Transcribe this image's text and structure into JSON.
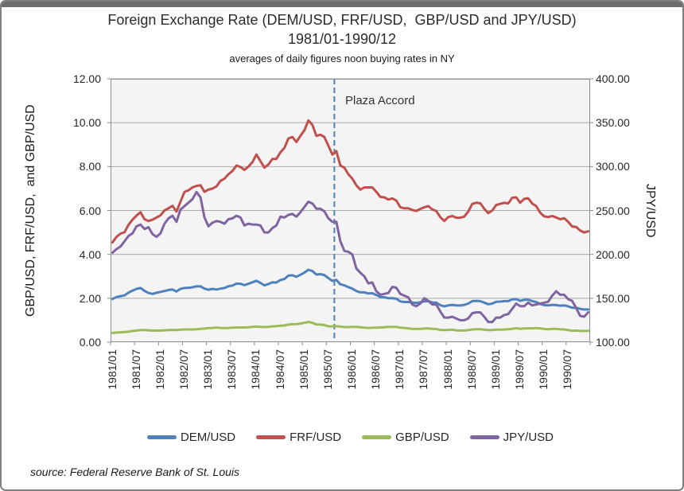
{
  "chart_data": {
    "type": "line",
    "title": "Foreign Exchange Rate (DEM/USD, FRF/USD,  GBP/USD and JPY/USD)",
    "subtitle": "1981/01-1990/12",
    "subtitle2": "averages of daily figures noon buying rates in NY",
    "source": "source: Federal Reserve Bank of St. Louis",
    "grid": true,
    "legend_position": "bottom",
    "annotation": {
      "text": "Plaza Accord",
      "x": "1985/09",
      "style": "dashed-vertical",
      "color": "#4F81BD"
    },
    "left_axis": {
      "label": "GBP/USD, FRF/USD,  and GBP/USD",
      "min": 0,
      "max": 12,
      "step": 2
    },
    "right_axis": {
      "label": "JPY/USD",
      "min": 100,
      "max": 400,
      "step": 50
    },
    "x_tick_step": 6,
    "x": [
      "1981/01",
      "1981/02",
      "1981/03",
      "1981/04",
      "1981/05",
      "1981/06",
      "1981/07",
      "1981/08",
      "1981/09",
      "1981/10",
      "1981/11",
      "1981/12",
      "1982/01",
      "1982/02",
      "1982/03",
      "1982/04",
      "1982/05",
      "1982/06",
      "1982/07",
      "1982/08",
      "1982/09",
      "1982/10",
      "1982/11",
      "1982/12",
      "1983/01",
      "1983/02",
      "1983/03",
      "1983/04",
      "1983/05",
      "1983/06",
      "1983/07",
      "1983/08",
      "1983/09",
      "1983/10",
      "1983/11",
      "1983/12",
      "1984/01",
      "1984/02",
      "1984/03",
      "1984/04",
      "1984/05",
      "1984/06",
      "1984/07",
      "1984/08",
      "1984/09",
      "1984/10",
      "1984/11",
      "1984/12",
      "1985/01",
      "1985/02",
      "1985/03",
      "1985/04",
      "1985/05",
      "1985/06",
      "1985/07",
      "1985/08",
      "1985/09",
      "1985/10",
      "1985/11",
      "1985/12",
      "1986/01",
      "1986/02",
      "1986/03",
      "1986/04",
      "1986/05",
      "1986/06",
      "1986/07",
      "1986/08",
      "1986/09",
      "1986/10",
      "1986/11",
      "1986/12",
      "1987/01",
      "1987/02",
      "1987/03",
      "1987/04",
      "1987/05",
      "1987/06",
      "1987/07",
      "1987/08",
      "1987/09",
      "1987/10",
      "1987/11",
      "1987/12",
      "1988/01",
      "1988/02",
      "1988/03",
      "1988/04",
      "1988/05",
      "1988/06",
      "1988/07",
      "1988/08",
      "1988/09",
      "1988/10",
      "1988/11",
      "1988/12",
      "1989/01",
      "1989/02",
      "1989/03",
      "1989/04",
      "1989/05",
      "1989/06",
      "1989/07",
      "1989/08",
      "1989/09",
      "1989/10",
      "1989/11",
      "1989/12",
      "1990/01",
      "1990/02",
      "1990/03",
      "1990/04",
      "1990/05",
      "1990/06",
      "1990/07",
      "1990/08",
      "1990/09",
      "1990/10",
      "1990/11",
      "1990/12"
    ],
    "series": [
      {
        "name": "DEM/USD",
        "axis": "left",
        "color": "#4F81BD",
        "values": [
          1.97,
          2.06,
          2.1,
          2.13,
          2.26,
          2.35,
          2.43,
          2.47,
          2.34,
          2.24,
          2.2,
          2.25,
          2.29,
          2.33,
          2.38,
          2.4,
          2.31,
          2.43,
          2.47,
          2.48,
          2.5,
          2.54,
          2.55,
          2.44,
          2.39,
          2.43,
          2.4,
          2.44,
          2.47,
          2.55,
          2.58,
          2.67,
          2.66,
          2.6,
          2.66,
          2.73,
          2.8,
          2.7,
          2.59,
          2.65,
          2.73,
          2.72,
          2.83,
          2.88,
          3.03,
          3.05,
          2.98,
          3.07,
          3.17,
          3.3,
          3.24,
          3.08,
          3.1,
          3.06,
          2.92,
          2.79,
          2.84,
          2.64,
          2.59,
          2.51,
          2.44,
          2.33,
          2.27,
          2.27,
          2.22,
          2.23,
          2.15,
          2.06,
          2.05,
          2.0,
          2.0,
          1.98,
          1.86,
          1.83,
          1.83,
          1.81,
          1.79,
          1.82,
          1.86,
          1.87,
          1.81,
          1.8,
          1.69,
          1.63,
          1.68,
          1.7,
          1.67,
          1.67,
          1.7,
          1.76,
          1.87,
          1.88,
          1.87,
          1.8,
          1.73,
          1.76,
          1.84,
          1.85,
          1.87,
          1.87,
          1.95,
          1.96,
          1.88,
          1.93,
          1.94,
          1.87,
          1.83,
          1.74,
          1.69,
          1.68,
          1.7,
          1.69,
          1.66,
          1.68,
          1.63,
          1.57,
          1.57,
          1.52,
          1.49,
          1.49
        ]
      },
      {
        "name": "FRF/USD",
        "axis": "left",
        "color": "#C0504D",
        "values": [
          4.55,
          4.8,
          4.95,
          5.01,
          5.35,
          5.58,
          5.77,
          5.92,
          5.6,
          5.52,
          5.58,
          5.68,
          5.78,
          6.0,
          6.1,
          6.21,
          5.95,
          6.4,
          6.85,
          6.92,
          7.05,
          7.12,
          7.15,
          6.85,
          6.95,
          7.0,
          7.1,
          7.35,
          7.45,
          7.65,
          7.8,
          8.05,
          7.98,
          7.85,
          8.0,
          8.2,
          8.55,
          8.25,
          7.95,
          8.1,
          8.35,
          8.35,
          8.65,
          8.85,
          9.28,
          9.35,
          9.12,
          9.4,
          9.65,
          10.1,
          9.9,
          9.4,
          9.45,
          9.35,
          8.95,
          8.55,
          8.7,
          8.05,
          7.95,
          7.65,
          7.45,
          7.15,
          6.95,
          7.05,
          7.05,
          7.05,
          6.85,
          6.62,
          6.6,
          6.5,
          6.55,
          6.45,
          6.15,
          6.1,
          6.1,
          6.02,
          5.98,
          6.07,
          6.15,
          6.2,
          6.05,
          5.98,
          5.7,
          5.52,
          5.7,
          5.75,
          5.67,
          5.67,
          5.72,
          5.95,
          6.3,
          6.35,
          6.33,
          6.08,
          5.88,
          6.0,
          6.25,
          6.3,
          6.35,
          6.32,
          6.58,
          6.6,
          6.35,
          6.53,
          6.56,
          6.32,
          6.2,
          5.9,
          5.73,
          5.7,
          5.75,
          5.68,
          5.6,
          5.65,
          5.48,
          5.27,
          5.25,
          5.09,
          5.0,
          5.05
        ]
      },
      {
        "name": "GBP/USD",
        "axis": "left",
        "color": "#9BBB59",
        "values": [
          0.42,
          0.44,
          0.45,
          0.46,
          0.48,
          0.51,
          0.53,
          0.55,
          0.55,
          0.54,
          0.53,
          0.53,
          0.53,
          0.54,
          0.55,
          0.56,
          0.55,
          0.57,
          0.58,
          0.58,
          0.58,
          0.59,
          0.61,
          0.62,
          0.64,
          0.65,
          0.67,
          0.65,
          0.64,
          0.65,
          0.66,
          0.67,
          0.67,
          0.67,
          0.68,
          0.7,
          0.71,
          0.7,
          0.69,
          0.7,
          0.72,
          0.73,
          0.75,
          0.76,
          0.8,
          0.82,
          0.82,
          0.85,
          0.88,
          0.92,
          0.88,
          0.81,
          0.8,
          0.78,
          0.72,
          0.72,
          0.73,
          0.71,
          0.69,
          0.69,
          0.7,
          0.7,
          0.68,
          0.66,
          0.65,
          0.66,
          0.66,
          0.67,
          0.68,
          0.7,
          0.7,
          0.7,
          0.66,
          0.65,
          0.63,
          0.61,
          0.6,
          0.61,
          0.62,
          0.63,
          0.61,
          0.6,
          0.56,
          0.55,
          0.56,
          0.57,
          0.54,
          0.53,
          0.53,
          0.55,
          0.58,
          0.59,
          0.59,
          0.57,
          0.55,
          0.55,
          0.57,
          0.57,
          0.58,
          0.59,
          0.61,
          0.64,
          0.61,
          0.63,
          0.63,
          0.63,
          0.64,
          0.63,
          0.6,
          0.59,
          0.61,
          0.61,
          0.59,
          0.58,
          0.55,
          0.52,
          0.53,
          0.51,
          0.51,
          0.52
        ]
      },
      {
        "name": "JPY/USD",
        "axis": "right",
        "color": "#8064A2",
        "values": [
          202,
          206,
          209,
          215,
          221,
          224,
          232,
          234,
          229,
          231,
          223,
          220,
          224,
          235,
          241,
          244,
          237,
          251,
          255,
          259,
          263,
          271,
          265,
          242,
          232,
          236,
          238,
          237,
          235,
          240,
          241,
          244,
          242,
          233,
          235,
          234,
          234,
          233,
          225,
          225,
          230,
          233,
          243,
          242,
          245,
          246,
          243,
          248,
          254,
          260,
          258,
          252,
          252,
          249,
          241,
          237,
          237,
          215,
          204,
          203,
          200,
          184,
          179,
          175,
          167,
          168,
          158,
          154,
          155,
          156,
          163,
          162,
          155,
          153,
          151,
          143,
          141,
          144,
          150,
          147,
          143,
          143,
          135,
          128,
          128,
          129,
          127,
          125,
          125,
          127,
          133,
          134,
          134,
          129,
          123,
          123,
          128,
          128,
          131,
          132,
          138,
          144,
          141,
          141,
          145,
          142,
          143,
          144,
          145,
          146,
          153,
          158,
          154,
          154,
          149,
          147,
          139,
          130,
          129,
          134
        ]
      }
    ]
  }
}
